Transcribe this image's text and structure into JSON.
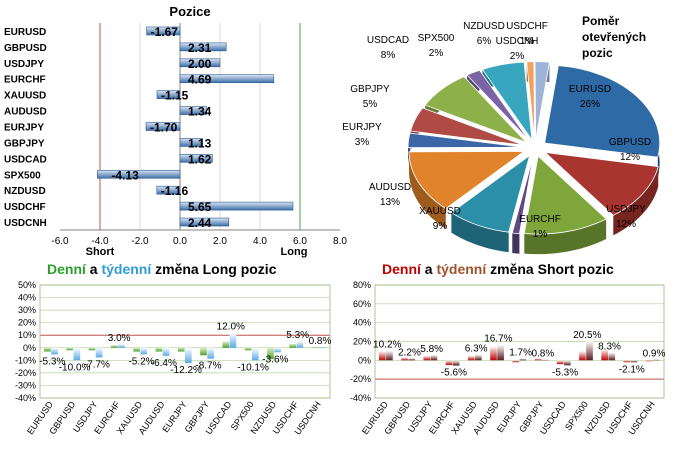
{
  "chart_data": [
    {
      "type": "bar",
      "orientation": "horizontal",
      "title": "Pozice",
      "categories": [
        "EURUSD",
        "GBPUSD",
        "USDJPY",
        "EURCHF",
        "XAUUSD",
        "AUDUSD",
        "EURJPY",
        "GBPJPY",
        "USDCAD",
        "SPX500",
        "NZDUSD",
        "USDCHF",
        "USDCNH"
      ],
      "values": [
        -1.67,
        2.31,
        2.0,
        4.69,
        -1.15,
        1.34,
        -1.7,
        1.13,
        1.62,
        -4.13,
        -1.16,
        5.65,
        2.44
      ],
      "value_labels": [
        "-1.67",
        "2.31",
        "2.00",
        "4.69",
        "-1.15",
        "1.34",
        "-1.70",
        "1.13",
        "1.62",
        "-4.13",
        "-1.16",
        "5.65",
        "2.44"
      ],
      "xlim": [
        -6,
        8
      ],
      "xticks": [
        "-6.0",
        "-4.0",
        "-2.0",
        "0.0",
        "2.0",
        "4.0",
        "6.0",
        "8.0"
      ],
      "annotations": [
        "Short",
        "Long"
      ],
      "bar_color": "#4f81bd"
    },
    {
      "type": "pie",
      "title": "Poměr otevřených pozic",
      "title_lines": [
        "Poměr",
        "otevřených",
        "pozic"
      ],
      "slices": [
        {
          "label": "EURUSD",
          "value": 26,
          "pct": "26%",
          "color": "#2e6aa6"
        },
        {
          "label": "GBPUSD",
          "value": 12,
          "pct": "12%",
          "color": "#a8352f"
        },
        {
          "label": "USDJPY",
          "value": 12,
          "pct": "12%",
          "color": "#7ea63a"
        },
        {
          "label": "EURCHF",
          "value": 1,
          "pct": "1%",
          "color": "#5f4a86"
        },
        {
          "label": "XAUUSD",
          "value": 9,
          "pct": "9%",
          "color": "#2c8fa8"
        },
        {
          "label": "AUDUSD",
          "value": 13,
          "pct": "13%",
          "color": "#e0832a"
        },
        {
          "label": "EURJPY",
          "value": 3,
          "pct": "3%",
          "color": "#3c66a8"
        },
        {
          "label": "GBPJPY",
          "value": 5,
          "pct": "5%",
          "color": "#b04a44"
        },
        {
          "label": "USDCAD",
          "value": 8,
          "pct": "8%",
          "color": "#8eb04a"
        },
        {
          "label": "SPX500",
          "value": 2,
          "pct": "2%",
          "color": "#7b64a6"
        },
        {
          "label": "NZDUSD",
          "value": 6,
          "pct": "6%",
          "color": "#39a6c0"
        },
        {
          "label": "USDCHF",
          "value": 1,
          "pct": "1%",
          "color": "#f2a15a"
        },
        {
          "label": "USDCNH",
          "value": 2,
          "pct": "2%",
          "color": "#9db4d8"
        }
      ]
    },
    {
      "type": "bar",
      "title": "Denní a týdenní změna Long pozic",
      "title_parts": [
        {
          "text": "Denní",
          "color": "#2aa02a"
        },
        {
          "text": " a ",
          "color": "#000000"
        },
        {
          "text": "týdenní",
          "color": "#2f9bd8"
        },
        {
          "text": " změna Long pozic",
          "color": "#000000"
        }
      ],
      "categories": [
        "EURUSD",
        "GBPUSD",
        "USDJPY",
        "EURCHF",
        "XAUUSD",
        "AUDUSD",
        "EURJPY",
        "GBPJPY",
        "USDCAD",
        "SPX500",
        "NZDUSD",
        "USDCHF",
        "USDCNH"
      ],
      "series": [
        {
          "name": "Denní",
          "color": "#4f9e2a",
          "values": [
            -3,
            -2,
            -2,
            2,
            -3,
            -3,
            -3,
            -6,
            5,
            -2,
            -9,
            3,
            0.5
          ]
        },
        {
          "name": "týdenní",
          "color": "#5aa9e6",
          "values": [
            -5.3,
            -10,
            -7.7,
            3.0,
            -5.2,
            -6.4,
            -12.2,
            -8.7,
            12.0,
            -10.1,
            -3.6,
            5.3,
            0.8
          ]
        }
      ],
      "data_labels": [
        "-5.3%",
        "-10.0%",
        "-7.7%",
        "3.0%",
        "-5.2%",
        "-6.4%",
        "-12.2%",
        "-8.7%",
        "12.0%",
        "-10.1%",
        "-3.6%",
        "5.3%",
        "0.8%"
      ],
      "ylim": [
        -40,
        50
      ],
      "yticks": [
        "50%",
        "40%",
        "30%",
        "20%",
        "10%",
        "0%",
        "-10%",
        "-20%",
        "-30%",
        "-40%"
      ]
    },
    {
      "type": "bar",
      "title": "Denní a týdenní změna Short pozic",
      "title_parts": [
        {
          "text": "Denní",
          "color": "#c00000"
        },
        {
          "text": " a ",
          "color": "#000000"
        },
        {
          "text": "týdenní",
          "color": "#a0522d"
        },
        {
          "text": " změna Short pozic",
          "color": "#000000"
        }
      ],
      "categories": [
        "EURUSD",
        "GBPUSD",
        "USDJPY",
        "EURCHF",
        "XAUUSD",
        "AUDUSD",
        "EURJPY",
        "GBPJPY",
        "USDCAD",
        "SPX500",
        "NZDUSD",
        "USDCHF",
        "USDCNH"
      ],
      "series": [
        {
          "name": "Denní",
          "color": "#c00000",
          "values": [
            10,
            3,
            5,
            -5,
            5,
            15,
            -2,
            2,
            -4,
            10,
            12,
            -2,
            -1
          ]
        },
        {
          "name": "týdenní",
          "color": "#5a1a1a",
          "values": [
            10.2,
            2.2,
            5.8,
            -5.6,
            6.3,
            16.7,
            1.7,
            0.8,
            -5.3,
            20.5,
            8.3,
            -2.1,
            0.9
          ]
        }
      ],
      "data_labels": [
        "10.2%",
        "2.2%",
        "5.8%",
        "-5.6%",
        "6.3%",
        "16.7%",
        "1.7%",
        "0.8%",
        "-5.3%",
        "20.5%",
        "8.3%",
        "-2.1%",
        "0.9%"
      ],
      "ylim": [
        -40,
        80
      ],
      "yticks": [
        "80%",
        "60%",
        "40%",
        "20%",
        "0%",
        "-20%",
        "-40%"
      ]
    }
  ]
}
